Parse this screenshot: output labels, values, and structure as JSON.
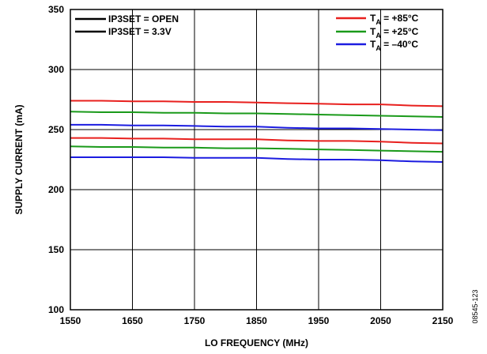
{
  "chart_data": {
    "type": "line",
    "xlabel": "LO FREQUENCY (MHz)",
    "ylabel": "SUPPLY CURRENT (mA)",
    "xlim": [
      1550,
      2150
    ],
    "ylim": [
      100,
      350
    ],
    "xticks": [
      1550,
      1650,
      1750,
      1850,
      1950,
      2050,
      2150
    ],
    "yticks": [
      100,
      150,
      200,
      250,
      300,
      350
    ],
    "grid": true,
    "x": [
      1550,
      1600,
      1650,
      1700,
      1750,
      1800,
      1850,
      1900,
      1950,
      2000,
      2050,
      2100,
      2150
    ],
    "style_legend": {
      "placement": "top-left",
      "entries": [
        {
          "label": "IP3SET = OPEN"
        },
        {
          "label": "IP3SET = 3.3V"
        }
      ]
    },
    "temp_legend": {
      "placement": "top-right",
      "entries": [
        {
          "main": "T",
          "sub": "A",
          "rest": " = +85°C",
          "color": "#e8201e"
        },
        {
          "main": "T",
          "sub": "A",
          "rest": " = +25°C",
          "color": "#1a9a1a"
        },
        {
          "main": "T",
          "sub": "A",
          "rest": " = –40°C",
          "color": "#1c1ce0"
        }
      ]
    },
    "series": [
      {
        "color": "#e8201e",
        "values": [
          274,
          274,
          273.5,
          273.5,
          273,
          273,
          272.5,
          272,
          271.5,
          271,
          271,
          270,
          269.5
        ]
      },
      {
        "color": "#1a9a1a",
        "values": [
          265,
          264.5,
          264.5,
          264,
          264,
          263.5,
          263.5,
          263,
          262.5,
          262,
          261.5,
          261,
          260.5
        ]
      },
      {
        "color": "#1c1ce0",
        "values": [
          254,
          254,
          253.5,
          253.5,
          253,
          252.5,
          252.5,
          251.5,
          251,
          251,
          250.5,
          250,
          249.5
        ]
      },
      {
        "color": "#e8201e",
        "values": [
          243,
          243,
          242.5,
          242.5,
          242,
          242,
          242,
          241,
          240.5,
          240.5,
          240,
          239,
          238.5
        ]
      },
      {
        "color": "#1a9a1a",
        "values": [
          236,
          235.5,
          235.5,
          235,
          235,
          234.5,
          234.5,
          234,
          233.5,
          233,
          232.5,
          232,
          231.5
        ]
      },
      {
        "color": "#1c1ce0",
        "values": [
          227,
          227,
          227,
          227,
          226.5,
          226.5,
          226.5,
          225.5,
          225,
          225,
          224.5,
          223.5,
          223
        ]
      }
    ],
    "figure_id": "08545-123"
  }
}
